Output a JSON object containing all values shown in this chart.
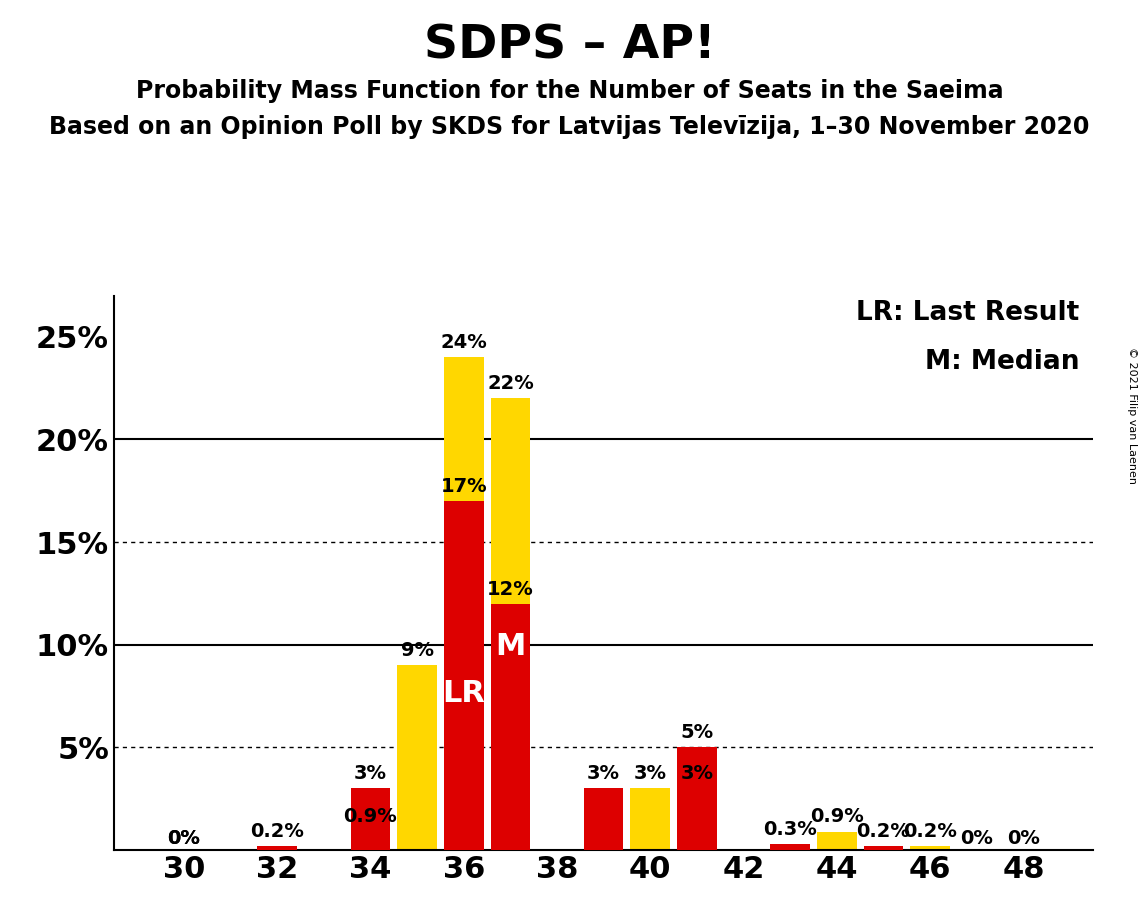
{
  "title": "SDPS – AP!",
  "subtitle1": "Probability Mass Function for the Number of Seats in the Saeima",
  "subtitle2": "Based on an Opinion Poll by SKDS for Latvijas Televīzija, 1–30 November 2020",
  "copyright": "© 2021 Filip van Laenen",
  "legend_lr": "LR: Last Result",
  "legend_m": "M: Median",
  "seats": [
    30,
    31,
    32,
    33,
    34,
    35,
    36,
    37,
    38,
    39,
    40,
    41,
    42,
    43,
    44,
    45,
    46,
    47,
    48
  ],
  "red_values": [
    0.0,
    0.0,
    0.2,
    0.0,
    3.0,
    0.0,
    17.0,
    12.0,
    0.0,
    3.0,
    0.0,
    5.0,
    0.0,
    0.3,
    0.0,
    0.2,
    0.0,
    0.0,
    0.0
  ],
  "yellow_values": [
    0.0,
    0.0,
    0.0,
    0.0,
    0.9,
    9.0,
    24.0,
    22.0,
    0.0,
    0.0,
    3.0,
    3.0,
    0.0,
    0.0,
    0.9,
    0.0,
    0.2,
    0.0,
    0.0
  ],
  "red_labels": [
    "0%",
    "",
    "0.2%",
    "",
    "3%",
    "",
    "17%",
    "12%",
    "",
    "3%",
    "",
    "5%",
    "",
    "0.3%",
    "",
    "0.2%",
    "",
    "0%",
    "0%"
  ],
  "yellow_labels": [
    "0%",
    "",
    "",
    "",
    "0.9%",
    "9%",
    "24%",
    "22%",
    "",
    "",
    "3%",
    "3%",
    "",
    "",
    "0.9%",
    "",
    "0.2%",
    "",
    ""
  ],
  "lr_seat": 35,
  "median_seat": 37,
  "red_color": "#DD0000",
  "yellow_color": "#FFD700",
  "bar_width": 0.85,
  "ylim": [
    0,
    27
  ],
  "yticks": [
    0,
    5,
    10,
    15,
    20,
    25
  ],
  "ytick_labels": [
    "",
    "5%",
    "10%",
    "15%",
    "20%",
    "25%"
  ],
  "xticks": [
    30,
    32,
    34,
    36,
    38,
    40,
    42,
    44,
    46,
    48
  ],
  "dotted_lines": [
    5.0,
    15.0
  ],
  "solid_lines": [
    10.0,
    20.0
  ],
  "background_color": "#FFFFFF",
  "title_fontsize": 34,
  "subtitle_fontsize": 17,
  "tick_fontsize": 22,
  "label_fontsize": 14,
  "legend_fontsize": 19,
  "lr_label_fontsize": 22,
  "m_label_fontsize": 22
}
